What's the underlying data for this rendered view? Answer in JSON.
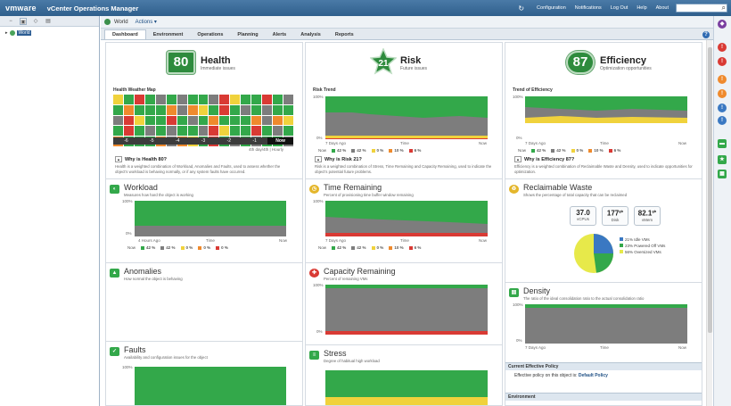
{
  "topbar": {
    "logo": "vmware",
    "app_title": "vCenter Operations Manager",
    "nav": [
      "Configuration",
      "Notifications",
      "Log Out",
      "Help",
      "About"
    ]
  },
  "left_panel": {
    "tree_item": "World"
  },
  "breadcrumb": {
    "current": "World",
    "actions": "Actions ▾"
  },
  "tabs": [
    "Dashboard",
    "Environment",
    "Operations",
    "Planning",
    "Alerts",
    "Analysis",
    "Reports"
  ],
  "health": {
    "score": "80",
    "title": "Health",
    "subtitle": "Immediate issues",
    "weather_label": "Health Weather Map",
    "scale": [
      "-6",
      "-5",
      "-4",
      "-3",
      "-2",
      "-1",
      "Now"
    ],
    "footnote": "4th day/4th | Hourly",
    "why": "Why is Health 80?",
    "why_desc": "Health is a weighted combination of Workload, Anomalies and Faults, used to assess whether the object's workload is behaving normally, or if any system faults have occurred."
  },
  "risk": {
    "score": "21",
    "title": "Risk",
    "subtitle": "Future issues",
    "trend_label": "Risk Trend",
    "why": "Why is Risk 21?",
    "why_desc": "Risk is a weighted combination of Stress, Time Remaining and Capacity Remaining, used to indicate the object's potential future problems."
  },
  "efficiency": {
    "score": "87",
    "title": "Efficiency",
    "subtitle": "Optimization opportunities",
    "trend_label": "Trend of Efficiency",
    "why": "Why is Efficiency 87?",
    "why_desc": "Efficiency is a weighted combination of Reclaimable Waste and Density, used to indicate opportunities for optimization."
  },
  "axis": {
    "y100": "100%",
    "y0": "0%",
    "start_7d": "7 Days Ago",
    "start_4h": "4 Hours Ago",
    "time": "Time",
    "now": "Now"
  },
  "legend_values": {
    "a": [
      "42 %",
      "42 %",
      "0 %",
      "10 %",
      "6 %"
    ],
    "b": [
      "42 %",
      "42 %",
      "0 %",
      "10 %",
      "6 %"
    ]
  },
  "workload": {
    "title": "Workload",
    "subtitle": "Measures how hard the object is working",
    "legend": [
      "42 %",
      "42 %",
      "0 %",
      "0 %",
      "0 %"
    ]
  },
  "anomalies": {
    "title": "Anomalies",
    "subtitle": "How normal the object is behaving"
  },
  "faults": {
    "title": "Faults",
    "subtitle": "Availability and configuration issues for the object"
  },
  "time_remaining": {
    "title": "Time Remaining",
    "subtitle": "Percent of provisioning time buffer window remaining",
    "legend": [
      "42 %",
      "42 %",
      "0 %",
      "10 %",
      "6 %"
    ]
  },
  "capacity_remaining": {
    "title": "Capacity Remaining",
    "subtitle": "Percent of remaining VMs"
  },
  "stress": {
    "title": "Stress",
    "subtitle": "Degree of habitual high workload"
  },
  "reclaimable_waste": {
    "title": "Reclaimable Waste",
    "subtitle": "Shows the percentage of total capacity that can be reclaimed",
    "bubbles": [
      {
        "value": "37.0",
        "unit": "",
        "label": "vCPUs"
      },
      {
        "value": "177",
        "unit": "gb",
        "label": "Disk"
      },
      {
        "value": "82.1",
        "unit": "gb",
        "label": "vMem"
      }
    ],
    "pie_legend": [
      "21% Idle VMs",
      "23% Powered Off VMs",
      "56% Oversized VMs"
    ],
    "pie_colors": [
      "#3a78c2",
      "#33a84a",
      "#e7e94a"
    ]
  },
  "density": {
    "title": "Density",
    "subtitle": "The ratio of the ideal consolidation ratio to the actual consolidation ratio"
  },
  "policy": {
    "header": "Current Effective Policy",
    "text": "Effective policy on this object is:",
    "link": "Default Policy"
  },
  "environment_header": "Environment",
  "colors": {
    "green": "#33a84a",
    "gray": "#7d7d7d",
    "yellow": "#f0d23c",
    "orange": "#ef8a2d",
    "red": "#d93a34",
    "topbar": "#3d6d9a"
  }
}
